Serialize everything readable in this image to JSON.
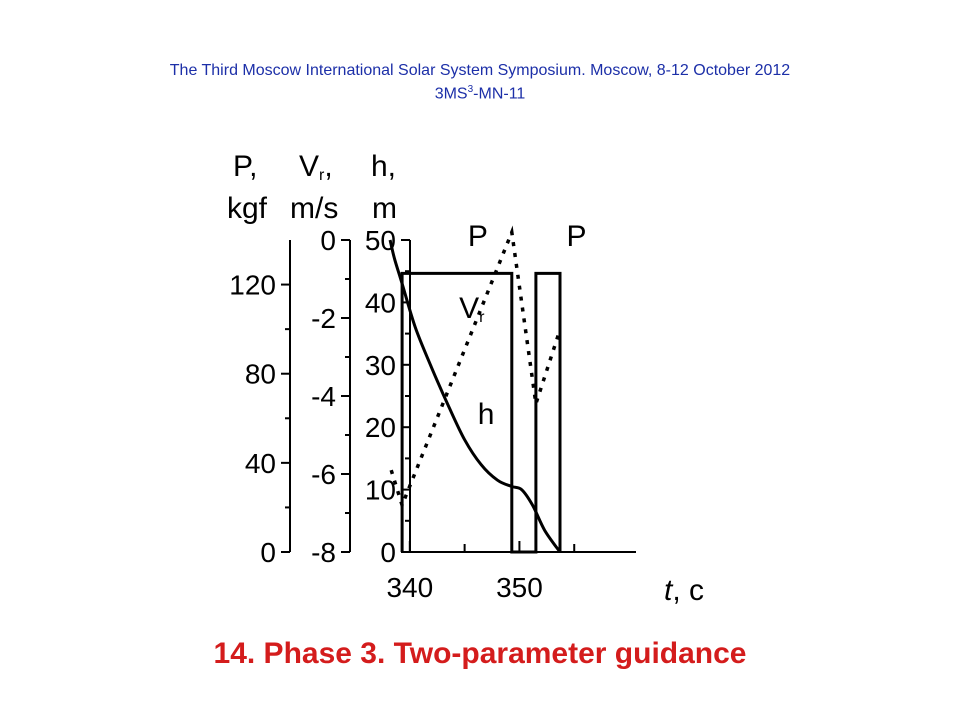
{
  "header": {
    "line1": "The Third  Moscow International Solar System Symposium. Moscow, 8-12 October 2012",
    "code_prefix": "3MS",
    "code_sup": "3",
    "code_suffix": "-MN-11"
  },
  "footer": {
    "caption": "14. Phase 3. Two-parameter guidance"
  },
  "chart_data": {
    "type": "line",
    "x_axis": {
      "label_main": "t",
      "label_unit": ", c",
      "ticks": [
        340,
        350
      ],
      "range": [
        335,
        361
      ]
    },
    "axes": {
      "P": {
        "title_line1": "P,",
        "title_line2": "kgf",
        "range": [
          0,
          140
        ],
        "ticks": [
          0,
          40,
          80,
          120
        ]
      },
      "Vr": {
        "title_main": "V",
        "title_sub": "r",
        "title_comma": ",",
        "title_line2": "m/s",
        "range": [
          -8,
          0
        ],
        "ticks": [
          0,
          -2,
          -4,
          -6,
          -8
        ]
      },
      "h": {
        "title_line1": "h,",
        "title_line2": "m",
        "range": [
          0,
          50
        ],
        "ticks": [
          0,
          10,
          20,
          30,
          40,
          50
        ]
      }
    },
    "series": [
      {
        "name": "P",
        "axis": "P",
        "x": [
          339.3,
          339.3,
          349.3,
          349.3,
          351.5,
          351.5,
          353.7,
          353.7
        ],
        "y": [
          0,
          125,
          125,
          0,
          0,
          125,
          125,
          0
        ]
      },
      {
        "name": "Vr",
        "axis": "Vr",
        "dashed": true,
        "x": [
          338.3,
          339.3,
          349.3,
          351.5,
          353.7
        ],
        "y": [
          -5.9,
          -6.8,
          0.2,
          -4.2,
          -2.3
        ]
      },
      {
        "name": "h",
        "axis": "h",
        "x": [
          338.2,
          338.6,
          339.3,
          340.5,
          342,
          343.5,
          345,
          346.5,
          348,
          349.3,
          350.2,
          351.2,
          352.3,
          353.7
        ],
        "y": [
          50,
          47,
          43,
          36,
          29.5,
          23.5,
          18,
          14,
          11.5,
          10.5,
          10,
          7.5,
          3.5,
          0
        ]
      }
    ],
    "labels": [
      {
        "series": "P",
        "text": "P",
        "x": 345.3,
        "y_axis": "h",
        "y": 49
      },
      {
        "series": "P",
        "text": "P",
        "x": 354.3,
        "y_axis": "h",
        "y": 49
      },
      {
        "series": "Vr",
        "text": "V",
        "sub": "r",
        "x": 344.5,
        "y_axis": "h",
        "y": 37.5
      },
      {
        "series": "h",
        "text": "h",
        "x": 346.2,
        "y_axis": "h",
        "y": 20.5
      }
    ]
  }
}
